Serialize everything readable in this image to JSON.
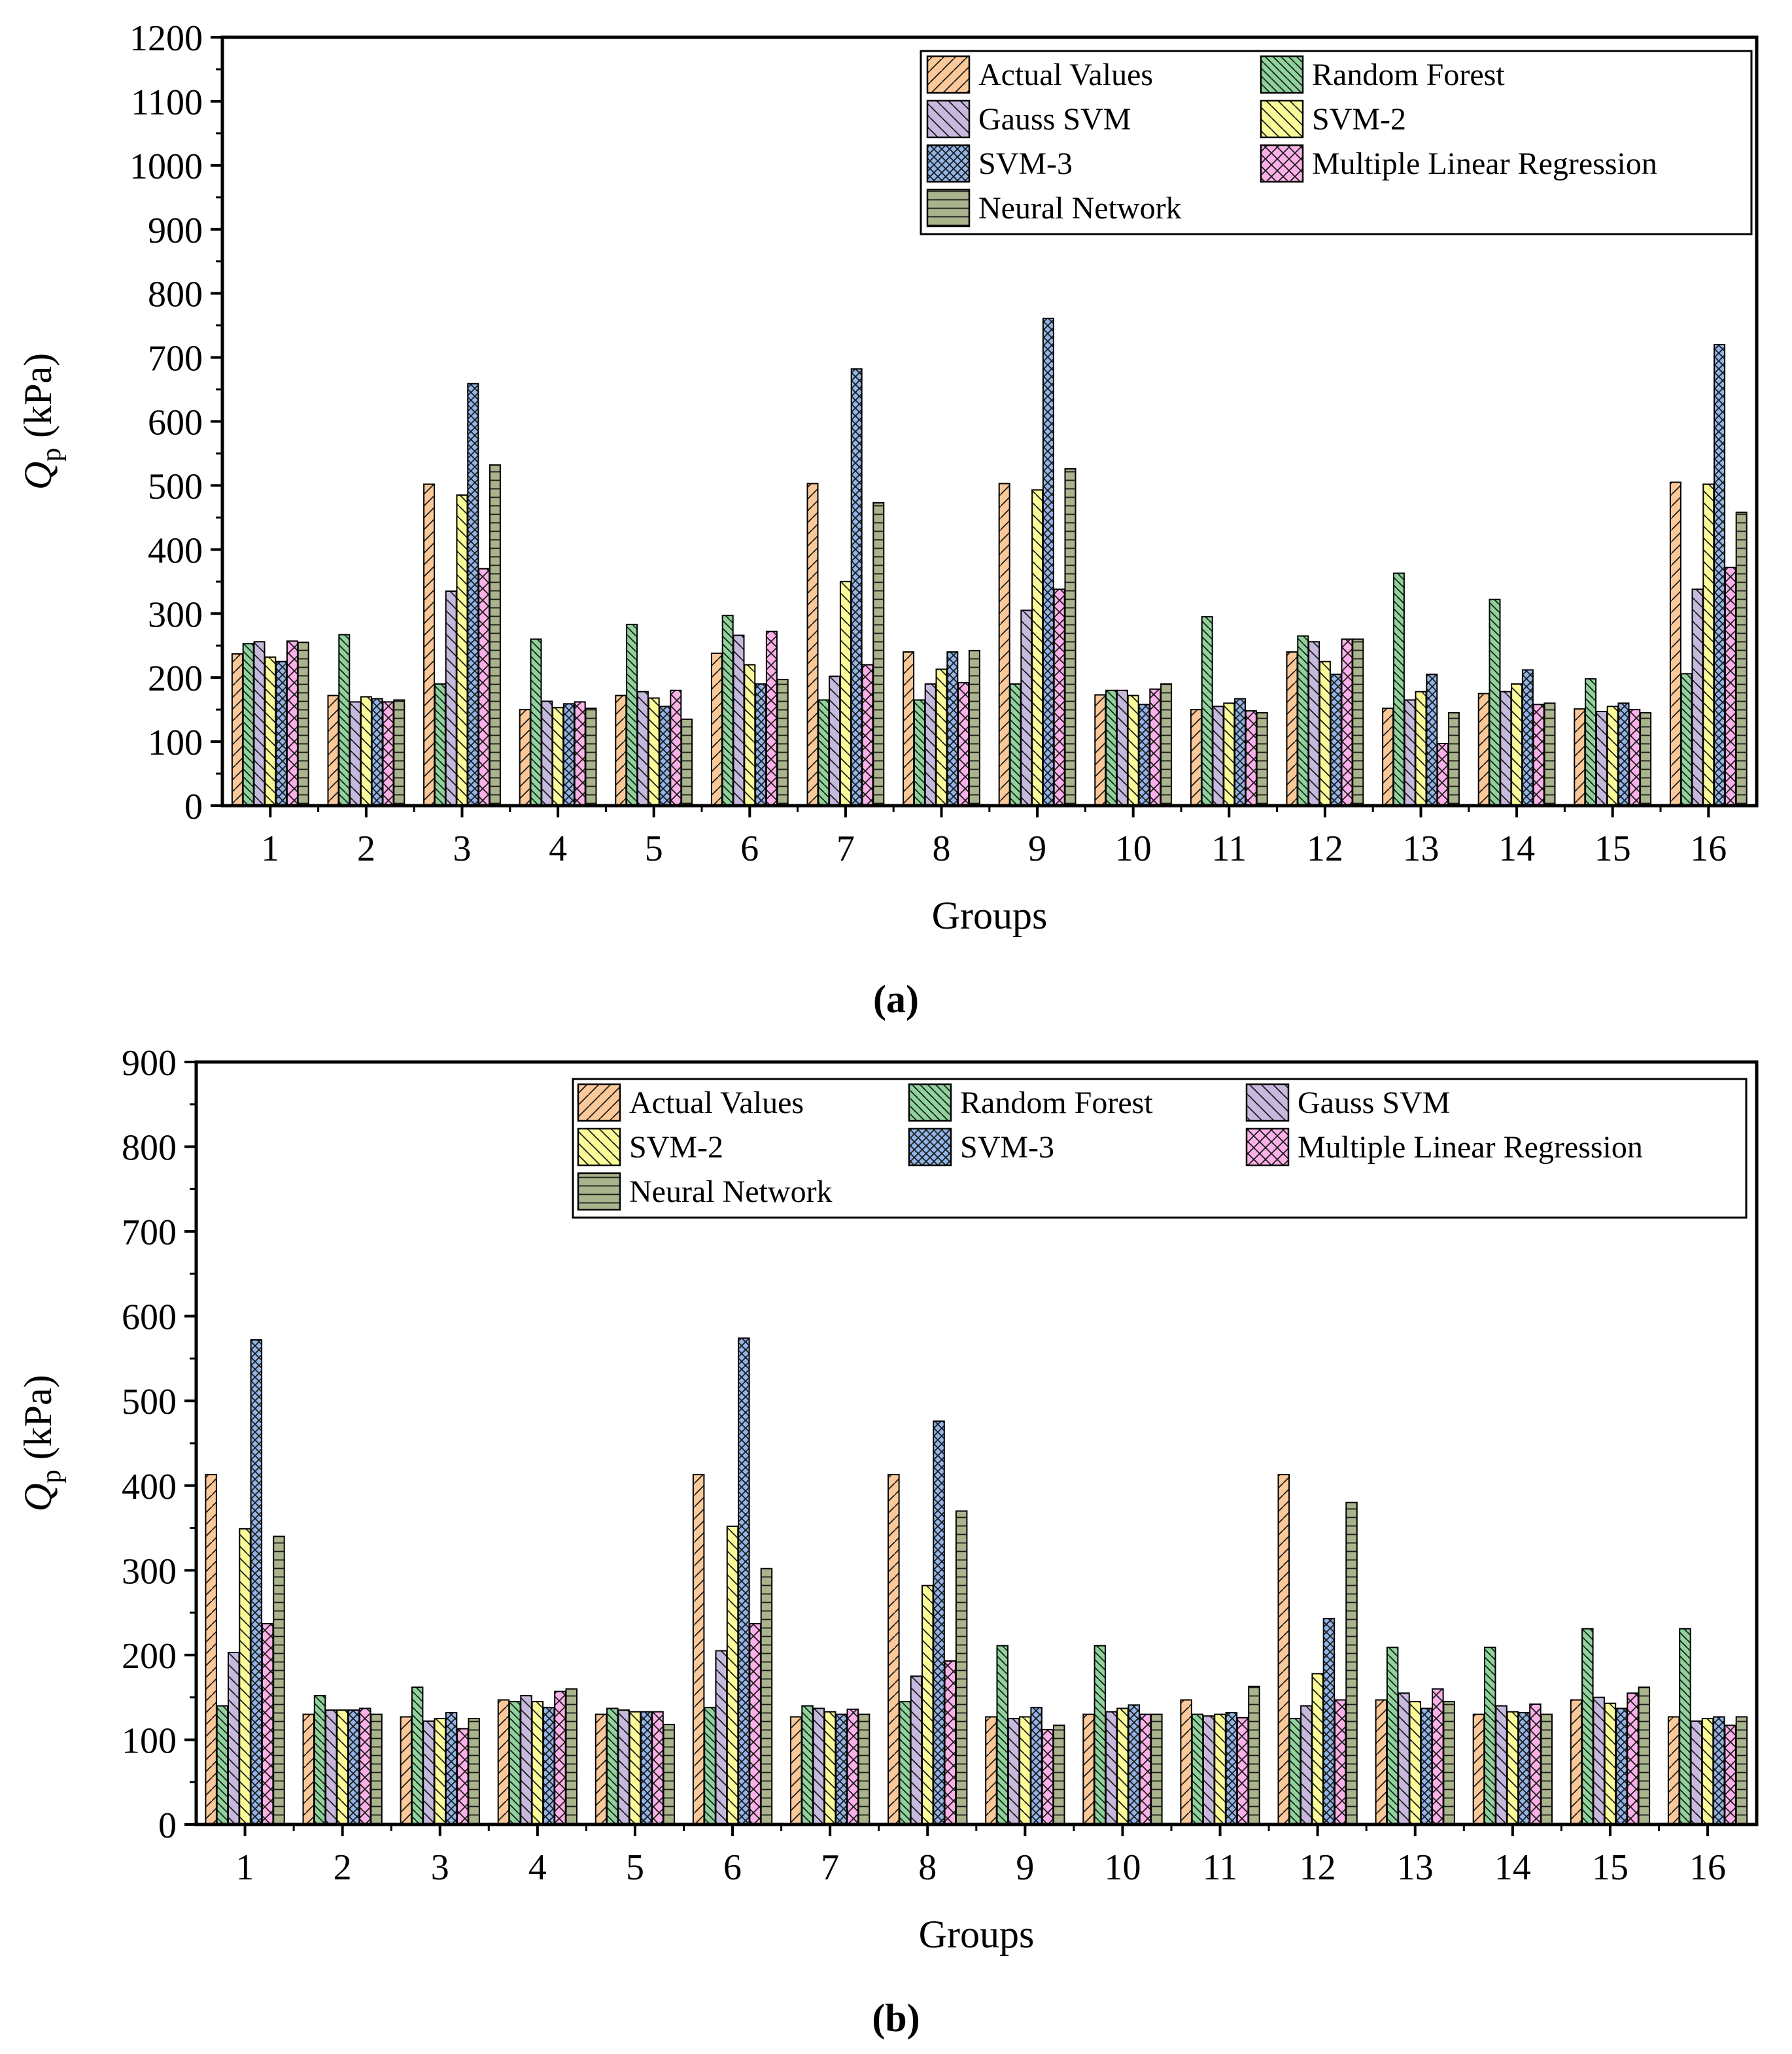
{
  "colors": {
    "Actual Values": "#fbc999",
    "Random Forest": "#8fd29b",
    "Gauss SVM": "#c7b9dd",
    "SVM-2": "#fbfb99",
    "SVM-3": "#92b4e6",
    "Multiple Linear Regression": "#fbb1e8",
    "Neural Network": "#aab48c"
  },
  "patterns": {
    "Actual Values": "diag-right",
    "Random Forest": "diag-left-dense",
    "Gauss SVM": "diag-left",
    "SVM-2": "diag-left",
    "SVM-3": "cross-dense",
    "Multiple Linear Regression": "cross",
    "Neural Network": "horizontal"
  },
  "chart_data": [
    {
      "type": "bar",
      "panel_label": "(a)",
      "xlabel": "Groups",
      "ylabel_symbol": "Q",
      "ylabel_sub": "p",
      "ylabel_unit": " (kPa)",
      "ylim": [
        0,
        1200
      ],
      "yticks": [
        0,
        100,
        200,
        300,
        400,
        500,
        600,
        700,
        800,
        900,
        1000,
        1100,
        1200
      ],
      "categories": [
        "1",
        "2",
        "3",
        "4",
        "5",
        "6",
        "7",
        "8",
        "9",
        "10",
        "11",
        "12",
        "13",
        "14",
        "15",
        "16"
      ],
      "legend_columns": 2,
      "legend_position": "top-right",
      "series": [
        {
          "name": "Actual Values",
          "values": [
            237,
            172,
            502,
            150,
            172,
            238,
            503,
            240,
            503,
            173,
            150,
            240,
            152,
            175,
            151,
            505
          ]
        },
        {
          "name": "Random Forest",
          "values": [
            253,
            267,
            190,
            260,
            283,
            297,
            165,
            165,
            190,
            180,
            295,
            265,
            363,
            322,
            198,
            206
          ]
        },
        {
          "name": "Gauss SVM",
          "values": [
            256,
            162,
            335,
            163,
            178,
            266,
            202,
            190,
            305,
            180,
            155,
            256,
            165,
            178,
            147,
            338
          ]
        },
        {
          "name": "SVM-2",
          "values": [
            232,
            170,
            485,
            153,
            168,
            220,
            350,
            213,
            493,
            172,
            160,
            225,
            178,
            190,
            155,
            502
          ]
        },
        {
          "name": "SVM-3",
          "values": [
            225,
            167,
            659,
            159,
            155,
            190,
            682,
            240,
            761,
            158,
            167,
            205,
            205,
            212,
            160,
            720
          ]
        },
        {
          "name": "Multiple Linear Regression",
          "values": [
            257,
            162,
            370,
            162,
            180,
            272,
            220,
            192,
            338,
            182,
            148,
            260,
            97,
            158,
            150,
            372
          ]
        },
        {
          "name": "Neural Network",
          "values": [
            255,
            165,
            532,
            152,
            135,
            197,
            473,
            242,
            526,
            190,
            145,
            260,
            145,
            160,
            145,
            458
          ]
        }
      ]
    },
    {
      "type": "bar",
      "panel_label": "(b)",
      "xlabel": "Groups",
      "ylabel_symbol": "Q",
      "ylabel_sub": "p",
      "ylabel_unit": " (kPa)",
      "ylim": [
        0,
        900
      ],
      "yticks": [
        0,
        100,
        200,
        300,
        400,
        500,
        600,
        700,
        800,
        900
      ],
      "categories": [
        "1",
        "2",
        "3",
        "4",
        "5",
        "6",
        "7",
        "8",
        "9",
        "10",
        "11",
        "12",
        "13",
        "14",
        "15",
        "16"
      ],
      "legend_columns": 3,
      "legend_position": "top-right",
      "series": [
        {
          "name": "Actual Values",
          "values": [
            413,
            130,
            127,
            147,
            130,
            413,
            127,
            413,
            127,
            130,
            147,
            413,
            147,
            130,
            147,
            127
          ]
        },
        {
          "name": "Random Forest",
          "values": [
            140,
            152,
            162,
            145,
            137,
            138,
            140,
            145,
            211,
            211,
            130,
            125,
            209,
            209,
            231,
            231
          ]
        },
        {
          "name": "Gauss SVM",
          "values": [
            203,
            135,
            122,
            152,
            135,
            205,
            137,
            175,
            125,
            133,
            128,
            140,
            155,
            140,
            150,
            122
          ]
        },
        {
          "name": "SVM-2",
          "values": [
            349,
            135,
            125,
            145,
            133,
            352,
            133,
            282,
            127,
            137,
            130,
            178,
            145,
            133,
            143,
            125
          ]
        },
        {
          "name": "SVM-3",
          "values": [
            572,
            135,
            132,
            138,
            133,
            574,
            130,
            476,
            138,
            141,
            132,
            243,
            137,
            132,
            137,
            127
          ]
        },
        {
          "name": "Multiple Linear Regression",
          "values": [
            237,
            137,
            113,
            157,
            133,
            237,
            136,
            193,
            112,
            130,
            126,
            147,
            160,
            142,
            155,
            117
          ]
        },
        {
          "name": "Neural Network",
          "values": [
            340,
            130,
            125,
            160,
            118,
            302,
            130,
            370,
            117,
            130,
            163,
            380,
            145,
            130,
            162,
            127
          ]
        }
      ]
    }
  ]
}
